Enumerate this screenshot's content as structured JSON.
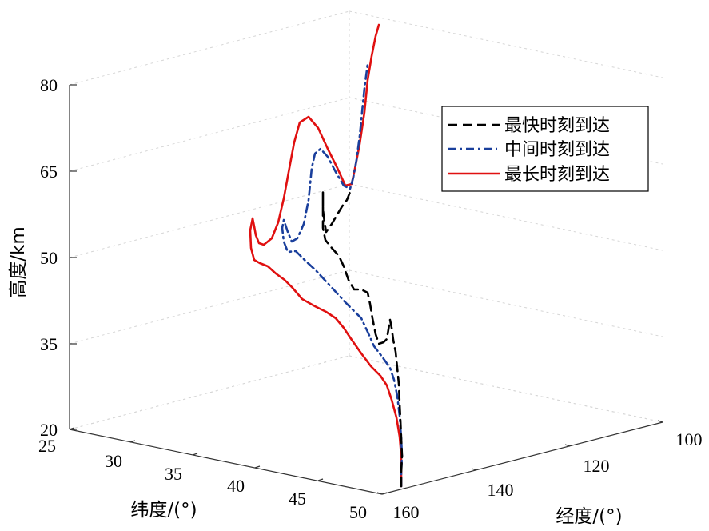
{
  "chart_data": {
    "type": "line",
    "projection": "3d",
    "xlabel": "经度/(°)",
    "ylabel": "纬度/(°)",
    "zlabel": "高度/km",
    "x_ticks": [
      "100",
      "120",
      "140",
      "160"
    ],
    "y_ticks": [
      "25",
      "30",
      "35",
      "40",
      "45",
      "50"
    ],
    "z_ticks": [
      "20",
      "35",
      "50",
      "65",
      "80"
    ],
    "zlim": [
      20,
      80
    ],
    "grid": true,
    "legend_position": "top-right",
    "series": [
      {
        "name": "最快时刻到达",
        "color": "#000000",
        "dash": "dashed",
        "points": [
          [
            502,
            608
          ],
          [
            502,
            590
          ],
          [
            503,
            570
          ],
          [
            502,
            548
          ],
          [
            501,
            525
          ],
          [
            500,
            505
          ],
          [
            499,
            480
          ],
          [
            497,
            460
          ],
          [
            495,
            440
          ],
          [
            492,
            425
          ],
          [
            490,
            410
          ],
          [
            488,
            400
          ],
          [
            486,
            412
          ],
          [
            484,
            424
          ],
          [
            480,
            428
          ],
          [
            474,
            430
          ],
          [
            470,
            418
          ],
          [
            466,
            398
          ],
          [
            463,
            380
          ],
          [
            460,
            366
          ],
          [
            452,
            362
          ],
          [
            443,
            362
          ],
          [
            436,
            350
          ],
          [
            430,
            333
          ],
          [
            424,
            320
          ],
          [
            415,
            310
          ],
          [
            407,
            300
          ],
          [
            404,
            285
          ],
          [
            404,
            268
          ],
          [
            404,
            250
          ],
          [
            404,
            240
          ],
          [
            404,
            262
          ],
          [
            406,
            278
          ],
          [
            408,
            290
          ],
          [
            415,
            280
          ],
          [
            422,
            268
          ],
          [
            428,
            258
          ],
          [
            434,
            250
          ],
          [
            438,
            240
          ]
        ]
      },
      {
        "name": "中间时刻到达",
        "color": "#1a3f9c",
        "dash": "dashdot",
        "points": [
          [
            502,
            608
          ],
          [
            502,
            590
          ],
          [
            503,
            570
          ],
          [
            502,
            548
          ],
          [
            500,
            520
          ],
          [
            497,
            495
          ],
          [
            493,
            475
          ],
          [
            488,
            460
          ],
          [
            478,
            446
          ],
          [
            468,
            433
          ],
          [
            460,
            415
          ],
          [
            452,
            398
          ],
          [
            442,
            388
          ],
          [
            432,
            378
          ],
          [
            420,
            365
          ],
          [
            408,
            352
          ],
          [
            395,
            338
          ],
          [
            382,
            326
          ],
          [
            370,
            314
          ],
          [
            360,
            315
          ],
          [
            355,
            302
          ],
          [
            353,
            285
          ],
          [
            355,
            275
          ],
          [
            360,
            290
          ],
          [
            365,
            302
          ],
          [
            372,
            298
          ],
          [
            380,
            280
          ],
          [
            386,
            250
          ],
          [
            390,
            210
          ],
          [
            394,
            192
          ],
          [
            401,
            186
          ],
          [
            410,
            196
          ],
          [
            420,
            215
          ],
          [
            430,
            232
          ],
          [
            438,
            236
          ],
          [
            442,
            222
          ],
          [
            446,
            200
          ],
          [
            450,
            170
          ],
          [
            453,
            140
          ],
          [
            456,
            110
          ],
          [
            460,
            80
          ]
        ]
      },
      {
        "name": "最长时刻到达",
        "color": "#e01010",
        "dash": "solid",
        "points": [
          [
            502,
            608
          ],
          [
            502,
            590
          ],
          [
            502,
            570
          ],
          [
            500,
            546
          ],
          [
            496,
            522
          ],
          [
            490,
            500
          ],
          [
            484,
            482
          ],
          [
            476,
            470
          ],
          [
            464,
            458
          ],
          [
            452,
            442
          ],
          [
            440,
            425
          ],
          [
            430,
            410
          ],
          [
            420,
            398
          ],
          [
            408,
            390
          ],
          [
            394,
            383
          ],
          [
            378,
            374
          ],
          [
            366,
            360
          ],
          [
            356,
            350
          ],
          [
            345,
            342
          ],
          [
            335,
            333
          ],
          [
            325,
            329
          ],
          [
            318,
            325
          ],
          [
            314,
            310
          ],
          [
            313,
            288
          ],
          [
            316,
            273
          ],
          [
            318,
            283
          ],
          [
            320,
            294
          ],
          [
            324,
            304
          ],
          [
            330,
            306
          ],
          [
            340,
            298
          ],
          [
            348,
            278
          ],
          [
            355,
            248
          ],
          [
            362,
            210
          ],
          [
            368,
            178
          ],
          [
            375,
            153
          ],
          [
            386,
            146
          ],
          [
            398,
            160
          ],
          [
            410,
            186
          ],
          [
            422,
            210
          ],
          [
            432,
            232
          ],
          [
            440,
            230
          ],
          [
            445,
            206
          ],
          [
            450,
            180
          ],
          [
            456,
            140
          ],
          [
            460,
            100
          ],
          [
            465,
            70
          ],
          [
            470,
            45
          ],
          [
            474,
            31
          ]
        ]
      }
    ]
  }
}
